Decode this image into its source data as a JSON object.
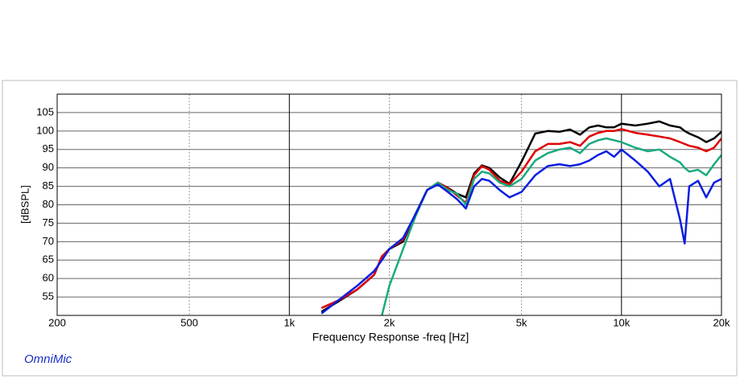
{
  "chart_data": {
    "type": "line",
    "x_label": "Frequency Response -freq [Hz]",
    "y_label": "[dBSPL]",
    "annotation": "OmniMic",
    "log_x": true,
    "grid": true,
    "xlim": [
      200,
      20000
    ],
    "xticks": [
      {
        "value": 200,
        "label": "200"
      },
      {
        "value": 500,
        "label": "500"
      },
      {
        "value": 1000,
        "label": "1k"
      },
      {
        "value": 2000,
        "label": "2k"
      },
      {
        "value": 5000,
        "label": "5k"
      },
      {
        "value": 10000,
        "label": "10k"
      },
      {
        "value": 20000,
        "label": "20k"
      }
    ],
    "ylim": [
      50,
      110
    ],
    "yticks": [
      55,
      60,
      65,
      70,
      75,
      80,
      85,
      90,
      95,
      100,
      105
    ],
    "x": [
      1250,
      1400,
      1600,
      1800,
      1900,
      2000,
      2200,
      2400,
      2600,
      2800,
      3000,
      3200,
      3400,
      3600,
      3800,
      4000,
      4300,
      4600,
      5000,
      5500,
      6000,
      6500,
      7000,
      7500,
      8000,
      8500,
      9000,
      9500,
      10000,
      11000,
      12000,
      13000,
      14000,
      15000,
      15500,
      16000,
      17000,
      18000,
      19000,
      20000
    ],
    "series": [
      {
        "color": "#000000",
        "values": [
          51,
          53.7,
          57,
          61,
          66,
          68,
          70,
          77.6,
          84,
          86,
          84.6,
          83,
          82,
          88.5,
          90.7,
          90,
          87.4,
          85.7,
          91.7,
          99.3,
          100,
          99.8,
          100.4,
          99,
          101,
          101.5,
          101,
          101,
          102,
          101.5,
          102,
          102.6,
          101.5,
          101,
          100,
          99.3,
          98.3,
          97,
          98,
          99.8
        ]
      },
      {
        "color": "#e00000",
        "values": [
          52,
          54,
          57,
          61,
          66,
          68,
          70.5,
          77.5,
          84,
          86,
          84.5,
          82.5,
          80.5,
          88,
          90.5,
          89.5,
          86.5,
          85.5,
          89,
          94.5,
          96.5,
          96.5,
          97,
          96,
          98.5,
          99.5,
          100,
          100,
          100.5,
          99.5,
          99,
          98.5,
          98,
          97,
          96.5,
          96,
          95.5,
          94.5,
          95.5,
          98
        ]
      },
      {
        "color": "#1aaa80",
        "values": [
          null,
          null,
          null,
          null,
          50,
          58,
          68,
          77,
          84,
          86,
          84,
          83,
          80,
          87,
          89,
          88.5,
          86,
          85,
          87,
          92,
          94,
          95,
          95.5,
          94,
          96.5,
          97.5,
          98,
          97.5,
          97,
          95.5,
          94.5,
          95,
          93,
          91.5,
          90,
          89,
          89.5,
          88,
          91,
          93.5
        ]
      },
      {
        "color": "#0a1ee0",
        "values": [
          50.5,
          54,
          58,
          62,
          65,
          68,
          71,
          77.5,
          84,
          85.5,
          83.5,
          81.5,
          79,
          85,
          87,
          86.5,
          84,
          82,
          83.5,
          88,
          90.5,
          91,
          90.5,
          91,
          92,
          93.5,
          94.5,
          93,
          95,
          92,
          89,
          85,
          87,
          76,
          69.5,
          85,
          86.5,
          82,
          86,
          87
        ]
      }
    ]
  }
}
